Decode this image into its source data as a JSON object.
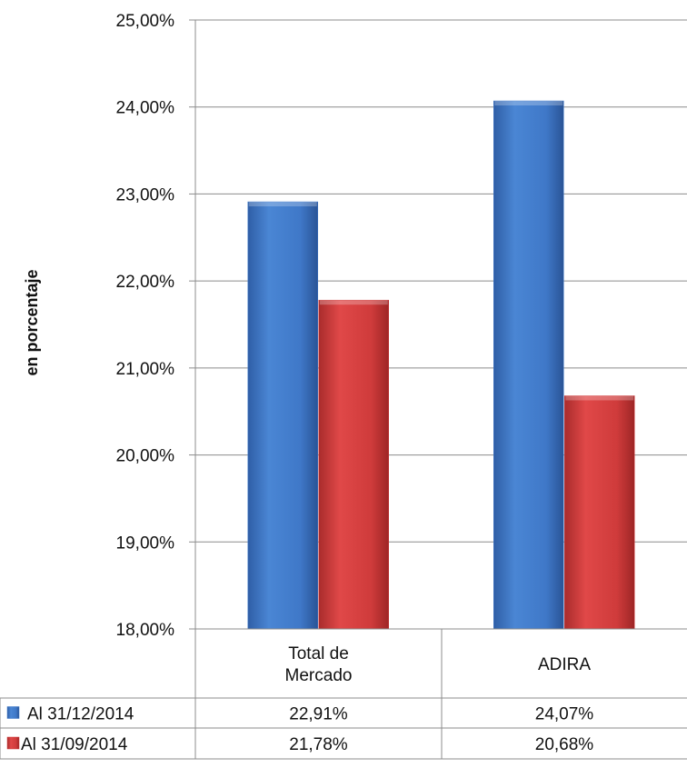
{
  "chart_data": {
    "type": "bar",
    "ylabel": "en porcentaje",
    "ylim": [
      18,
      25
    ],
    "y_ticks": [
      "25,00%",
      "24,00%",
      "23,00%",
      "22,00%",
      "21,00%",
      "20,00%",
      "19,00%",
      "18,00%"
    ],
    "categories": [
      [
        "Total de",
        "Mercado"
      ],
      [
        "ADIRA"
      ]
    ],
    "series": [
      {
        "name": "Al 31/12/2014",
        "color": "#3f78c8",
        "values": [
          22.91,
          24.07
        ],
        "labels": [
          "22,91%",
          "24,07%"
        ]
      },
      {
        "name": "Al 31/09/2014",
        "color": "#cf3b3b",
        "values": [
          21.78,
          20.68
        ],
        "labels": [
          "21,78%",
          "20,68%"
        ]
      }
    ],
    "grid": true,
    "legend": "data-table"
  }
}
